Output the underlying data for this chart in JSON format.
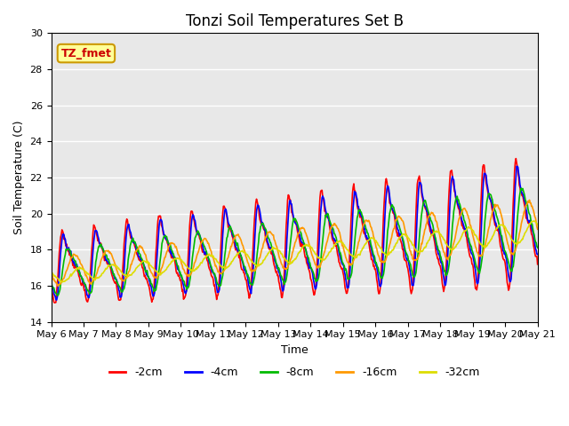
{
  "title": "Tonzi Soil Temperatures Set B",
  "xlabel": "Time",
  "ylabel": "Soil Temperature (C)",
  "ylim": [
    14,
    30
  ],
  "xlim": [
    0,
    360
  ],
  "tick_labels": [
    "May 6",
    "May 7",
    "May 8",
    "May 9",
    "May 10",
    "May 11",
    "May 12",
    "May 13",
    "May 14",
    "May 15",
    "May 16",
    "May 17",
    "May 18",
    "May 19",
    "May 20",
    "May 21"
  ],
  "tick_positions": [
    0,
    24,
    48,
    72,
    96,
    120,
    144,
    168,
    192,
    216,
    240,
    264,
    288,
    312,
    336,
    360
  ],
  "legend": [
    "-2cm",
    "-4cm",
    "-8cm",
    "-16cm",
    "-32cm"
  ],
  "colors": [
    "#ff0000",
    "#0000ff",
    "#00bb00",
    "#ff9900",
    "#dddd00"
  ],
  "linewidths": [
    1.2,
    1.2,
    1.2,
    1.2,
    1.2
  ],
  "annotation_text": "TZ_fmet",
  "annotation_color": "#cc0000",
  "annotation_bg": "#ffff99",
  "annotation_border": "#cc9900",
  "bg_color": "#e8e8e8",
  "title_fontsize": 12,
  "axis_label_fontsize": 9,
  "tick_fontsize": 8
}
